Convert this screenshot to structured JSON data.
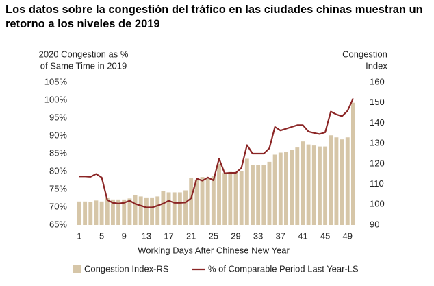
{
  "chart_data": {
    "type": "combo",
    "title": "Los datos sobre la congestión del tráfico en las ciudades chinas muestran un retorno a los niveles de 2019",
    "ylabel": [
      "2020 Congestion as %",
      "of Same Time in 2019"
    ],
    "y2label": [
      "Congestion",
      "Index"
    ],
    "xlabel": "Working Days After Chinese New Year",
    "x": [
      1,
      2,
      3,
      4,
      5,
      6,
      7,
      8,
      9,
      10,
      11,
      12,
      13,
      14,
      15,
      16,
      17,
      18,
      19,
      20,
      21,
      22,
      23,
      24,
      25,
      26,
      27,
      28,
      29,
      30,
      31,
      32,
      33,
      34,
      35,
      36,
      37,
      38,
      39,
      40,
      41,
      42,
      43,
      44,
      45,
      46,
      47,
      48,
      49,
      50
    ],
    "xlim": [
      -0.5,
      50.5
    ],
    "xticks": [
      1,
      5,
      9,
      13,
      17,
      21,
      25,
      29,
      33,
      37,
      41,
      45,
      49
    ],
    "ylim": [
      65,
      105
    ],
    "yticks": [
      {
        "value": 65,
        "label": "65%"
      },
      {
        "value": 70,
        "label": "70%"
      },
      {
        "value": 75,
        "label": "75%"
      },
      {
        "value": 80,
        "label": "80%"
      },
      {
        "value": 85,
        "label": "85%"
      },
      {
        "value": 90,
        "label": "90%"
      },
      {
        "value": 95,
        "label": "95%"
      },
      {
        "value": 100,
        "label": "100%"
      },
      {
        "value": 105,
        "label": "105%"
      }
    ],
    "y2lim": [
      90,
      160
    ],
    "y2ticks": [
      90,
      100,
      110,
      120,
      130,
      140,
      150,
      160
    ],
    "series": [
      {
        "name": "Congestion Index-RS",
        "type": "bar",
        "axis": "y2",
        "color": "#d6c6a8",
        "values": [
          101.5,
          101.5,
          101.3,
          102,
          101.5,
          103.5,
          102.5,
          102.5,
          102.5,
          103,
          104.5,
          104,
          103.5,
          103.5,
          104,
          106.5,
          106,
          106,
          106,
          107,
          113,
          112,
          113.5,
          113,
          114,
          120,
          115.5,
          116,
          116,
          116.5,
          122.5,
          119.5,
          119.5,
          119.5,
          121,
          124.5,
          125.5,
          126,
          127,
          128,
          131,
          129.5,
          129,
          128.5,
          128.5,
          134,
          133,
          132,
          133,
          150
        ]
      },
      {
        "name": "% of Comparable Period Last Year-LS",
        "type": "line",
        "axis": "y",
        "color": "#8b2525",
        "values": [
          78.6,
          78.6,
          78.5,
          79.3,
          78.3,
          72,
          71.2,
          71,
          71.2,
          71.8,
          70.9,
          70.4,
          69.9,
          69.9,
          70.4,
          71,
          71.8,
          71.2,
          71.2,
          71.3,
          72.5,
          78,
          77.4,
          78.3,
          77.5,
          83.6,
          79.5,
          79.6,
          79.6,
          81,
          87.4,
          85,
          85,
          85,
          86.5,
          92.5,
          91.5,
          92,
          92.5,
          93,
          93,
          91.2,
          90.8,
          90.5,
          91,
          96.8,
          96,
          95.5,
          97,
          100.5
        ]
      }
    ]
  }
}
